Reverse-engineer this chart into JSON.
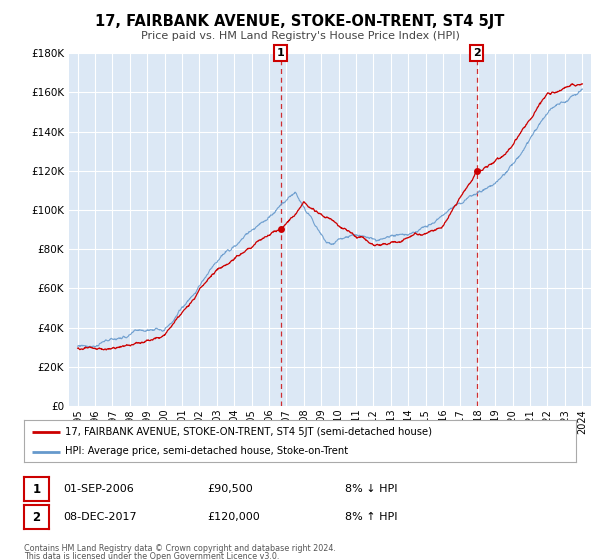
{
  "title": "17, FAIRBANK AVENUE, STOKE-ON-TRENT, ST4 5JT",
  "subtitle": "Price paid vs. HM Land Registry's House Price Index (HPI)",
  "legend_line1": "17, FAIRBANK AVENUE, STOKE-ON-TRENT, ST4 5JT (semi-detached house)",
  "legend_line2": "HPI: Average price, semi-detached house, Stoke-on-Trent",
  "annotation1_date": "01-SEP-2006",
  "annotation1_price": "£90,500",
  "annotation1_hpi": "8% ↓ HPI",
  "annotation2_date": "08-DEC-2017",
  "annotation2_price": "£120,000",
  "annotation2_hpi": "8% ↑ HPI",
  "footnote1": "Contains HM Land Registry data © Crown copyright and database right 2024.",
  "footnote2": "This data is licensed under the Open Government Licence v3.0.",
  "price_color": "#cc0000",
  "hpi_color": "#6699cc",
  "background_color": "#ffffff",
  "plot_bg_color": "#dce8f5",
  "grid_color": "#ffffff",
  "ylim": [
    0,
    180000
  ],
  "yticks": [
    0,
    20000,
    40000,
    60000,
    80000,
    100000,
    120000,
    140000,
    160000,
    180000
  ],
  "year_start": 1995,
  "year_end": 2024,
  "sale1_year": 2006.67,
  "sale1_price": 90500,
  "sale2_year": 2017.92,
  "sale2_price": 120000
}
